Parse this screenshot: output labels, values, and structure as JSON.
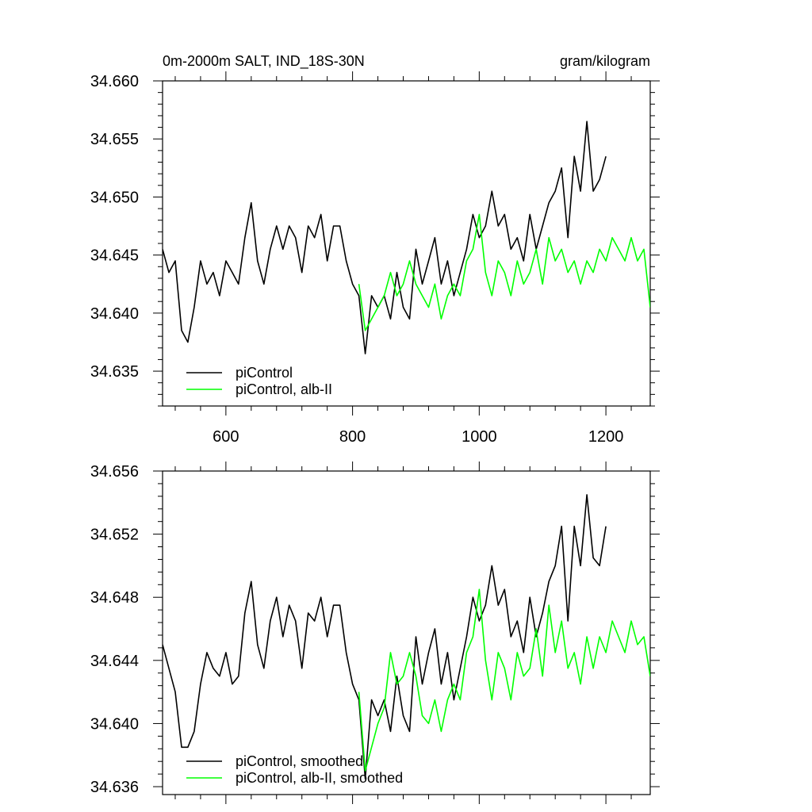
{
  "colors": {
    "control": "#000000",
    "alb": "#00ff00",
    "axis": "#000000",
    "background": "#ffffff"
  },
  "chart_data": [
    {
      "type": "line",
      "title_left": "0m-2000m SALT, IND_18S-30N",
      "title_right": "gram/kilogram",
      "xlim": [
        500,
        1270
      ],
      "ylim": [
        34.632,
        34.66
      ],
      "xticks": [
        600,
        800,
        1000,
        1200
      ],
      "xtick_labels": [
        "600",
        "800",
        "1000",
        "1200"
      ],
      "yticks": [
        34.635,
        34.64,
        34.645,
        34.65,
        34.655,
        34.66
      ],
      "ytick_labels": [
        "34.635",
        "34.640",
        "34.645",
        "34.650",
        "34.655",
        "34.660"
      ],
      "legend_position": "bottom-left",
      "series": [
        {
          "name": "piControl",
          "color": "#000000",
          "x": [
            500,
            510,
            520,
            530,
            540,
            550,
            560,
            570,
            580,
            590,
            600,
            610,
            620,
            630,
            640,
            650,
            660,
            670,
            680,
            690,
            700,
            710,
            720,
            730,
            740,
            750,
            760,
            770,
            780,
            790,
            800,
            810,
            820,
            830,
            840,
            850,
            860,
            870,
            880,
            890,
            900,
            910,
            920,
            930,
            940,
            950,
            960,
            970,
            980,
            990,
            1000,
            1010,
            1020,
            1030,
            1040,
            1050,
            1060,
            1070,
            1080,
            1090,
            1100,
            1110,
            1120,
            1130,
            1140,
            1150,
            1160,
            1170,
            1180,
            1190,
            1200
          ],
          "values": [
            34.6455,
            34.6435,
            34.6445,
            34.6385,
            34.6375,
            34.6405,
            34.6445,
            34.6425,
            34.6435,
            34.6415,
            34.6445,
            34.6435,
            34.6425,
            34.6465,
            34.6495,
            34.6445,
            34.6425,
            34.6455,
            34.6475,
            34.6455,
            34.6475,
            34.6465,
            34.6435,
            34.6475,
            34.6465,
            34.6485,
            34.6445,
            34.6475,
            34.6475,
            34.6445,
            34.6425,
            34.6415,
            34.6365,
            34.6415,
            34.6405,
            34.6415,
            34.6395,
            34.6435,
            34.6405,
            34.6395,
            34.6455,
            34.6425,
            34.6445,
            34.6465,
            34.6425,
            34.6445,
            34.6415,
            34.6435,
            34.6455,
            34.6485,
            34.6465,
            34.6475,
            34.6505,
            34.6475,
            34.6485,
            34.6455,
            34.6465,
            34.6445,
            34.6485,
            34.6455,
            34.6475,
            34.6495,
            34.6505,
            34.6525,
            34.6465,
            34.6535,
            34.6505,
            34.6565,
            34.6505,
            34.6515,
            34.6535
          ]
        },
        {
          "name": "piControl, alb-II",
          "color": "#00ff00",
          "x": [
            810,
            820,
            830,
            840,
            850,
            860,
            870,
            880,
            890,
            900,
            910,
            920,
            930,
            940,
            950,
            960,
            970,
            980,
            990,
            1000,
            1010,
            1020,
            1030,
            1040,
            1050,
            1060,
            1070,
            1080,
            1090,
            1100,
            1110,
            1120,
            1130,
            1140,
            1150,
            1160,
            1170,
            1180,
            1190,
            1200,
            1210,
            1220,
            1230,
            1240,
            1250,
            1260,
            1270
          ],
          "values": [
            34.6425,
            34.6385,
            34.6395,
            34.6405,
            34.6415,
            34.6435,
            34.6415,
            34.6425,
            34.6445,
            34.6425,
            34.6415,
            34.6405,
            34.6425,
            34.6395,
            34.6415,
            34.6425,
            34.6415,
            34.6445,
            34.6455,
            34.6485,
            34.6435,
            34.6415,
            34.6445,
            34.6435,
            34.6415,
            34.6445,
            34.6425,
            34.6435,
            34.6455,
            34.6425,
            34.6465,
            34.6445,
            34.6455,
            34.6435,
            34.6445,
            34.6425,
            34.6445,
            34.6435,
            34.6455,
            34.6445,
            34.6465,
            34.6455,
            34.6445,
            34.6465,
            34.6445,
            34.6455,
            34.6405
          ]
        }
      ]
    },
    {
      "type": "line",
      "xlim": [
        500,
        1270
      ],
      "ylim": [
        34.6355,
        34.656
      ],
      "xticks": [
        600,
        800,
        1000,
        1200
      ],
      "yticks": [
        34.636,
        34.64,
        34.644,
        34.648,
        34.652,
        34.656
      ],
      "ytick_labels": [
        "34.636",
        "34.640",
        "34.644",
        "34.648",
        "34.652",
        "34.656"
      ],
      "legend_position": "bottom-left",
      "series": [
        {
          "name": "piControl, smoothed",
          "color": "#000000",
          "x": [
            500,
            510,
            520,
            530,
            540,
            550,
            560,
            570,
            580,
            590,
            600,
            610,
            620,
            630,
            640,
            650,
            660,
            670,
            680,
            690,
            700,
            710,
            720,
            730,
            740,
            750,
            760,
            770,
            780,
            790,
            800,
            810,
            820,
            830,
            840,
            850,
            860,
            870,
            880,
            890,
            900,
            910,
            920,
            930,
            940,
            950,
            960,
            970,
            980,
            990,
            1000,
            1010,
            1020,
            1030,
            1040,
            1050,
            1060,
            1070,
            1080,
            1090,
            1100,
            1110,
            1120,
            1130,
            1140,
            1150,
            1160,
            1170,
            1180,
            1190,
            1200
          ],
          "values": [
            34.645,
            34.6435,
            34.642,
            34.6385,
            34.6385,
            34.6395,
            34.6425,
            34.6445,
            34.6435,
            34.643,
            34.6445,
            34.6425,
            34.643,
            34.647,
            34.649,
            34.645,
            34.6435,
            34.6465,
            34.648,
            34.6455,
            34.6475,
            34.6465,
            34.6435,
            34.647,
            34.6465,
            34.648,
            34.6455,
            34.6475,
            34.6475,
            34.6445,
            34.6425,
            34.6415,
            34.6365,
            34.6415,
            34.6405,
            34.6415,
            34.6395,
            34.643,
            34.6405,
            34.6395,
            34.6455,
            34.6425,
            34.6445,
            34.646,
            34.6425,
            34.6445,
            34.6415,
            34.6435,
            34.6455,
            34.648,
            34.6465,
            34.6475,
            34.65,
            34.6475,
            34.6485,
            34.6455,
            34.6465,
            34.6445,
            34.648,
            34.6455,
            34.647,
            34.649,
            34.65,
            34.6525,
            34.6465,
            34.6525,
            34.65,
            34.6545,
            34.6505,
            34.65,
            34.6525
          ]
        },
        {
          "name": "piControl, alb-II, smoothed",
          "color": "#00ff00",
          "x": [
            810,
            820,
            830,
            840,
            850,
            860,
            870,
            880,
            890,
            900,
            910,
            920,
            930,
            940,
            950,
            960,
            970,
            980,
            990,
            1000,
            1010,
            1020,
            1030,
            1040,
            1050,
            1060,
            1070,
            1080,
            1090,
            1100,
            1110,
            1120,
            1130,
            1140,
            1150,
            1160,
            1170,
            1180,
            1190,
            1200,
            1210,
            1220,
            1230,
            1240,
            1250,
            1260,
            1270
          ],
          "values": [
            34.642,
            34.637,
            34.6385,
            34.64,
            34.641,
            34.6445,
            34.6425,
            34.643,
            34.6445,
            34.643,
            34.6405,
            34.64,
            34.6415,
            34.6395,
            34.6415,
            34.6425,
            34.6415,
            34.6445,
            34.6455,
            34.6485,
            34.644,
            34.6415,
            34.6445,
            34.6435,
            34.6415,
            34.6445,
            34.643,
            34.6435,
            34.646,
            34.643,
            34.6475,
            34.6445,
            34.6465,
            34.6435,
            34.6445,
            34.6425,
            34.6455,
            34.6435,
            34.6455,
            34.6445,
            34.6465,
            34.6455,
            34.6445,
            34.6465,
            34.645,
            34.6455,
            34.643
          ]
        }
      ]
    }
  ]
}
